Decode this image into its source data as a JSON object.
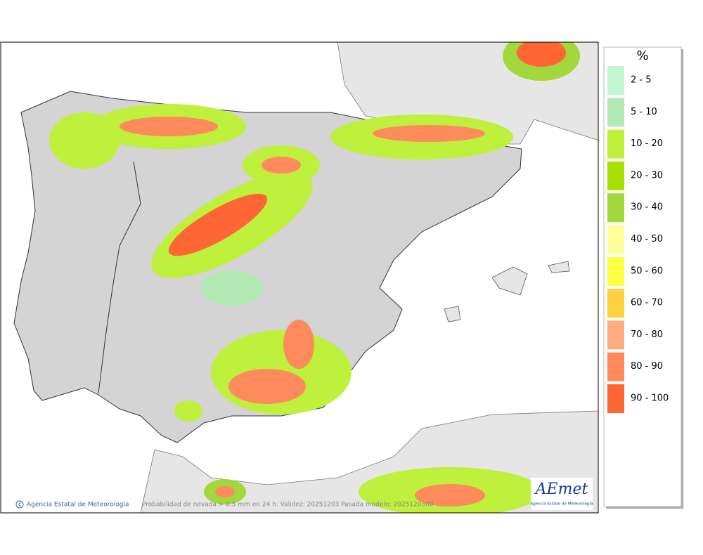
{
  "legend": {
    "title": "%",
    "items": [
      {
        "label": "2 - 5",
        "color": "#c4f7cf"
      },
      {
        "label": "5 - 10",
        "color": "#b2e8b4"
      },
      {
        "label": "10 - 20",
        "color": "#bef03c"
      },
      {
        "label": "20 - 30",
        "color": "#a8e000"
      },
      {
        "label": "30 - 40",
        "color": "#a2d83c"
      },
      {
        "label": "40 - 50",
        "color": "#ffff99"
      },
      {
        "label": "50 - 60",
        "color": "#ffff44"
      },
      {
        "label": "60 - 70",
        "color": "#ffd040"
      },
      {
        "label": "70 - 80",
        "color": "#ffac80"
      },
      {
        "label": "80 - 90",
        "color": "#ff8a5c"
      },
      {
        "label": "90 - 100",
        "color": "#ff6633"
      }
    ]
  },
  "footer": {
    "credit": "Agencia Estatal de Meteorología",
    "caption": "Probabilidad de nevada > 0.5 mm en 24 h. Validez: 20251203 Pasada modelo: 2025120300"
  },
  "logo": {
    "name": "AEmet",
    "subtitle": "Agencia Estatal de Meteorología"
  }
}
